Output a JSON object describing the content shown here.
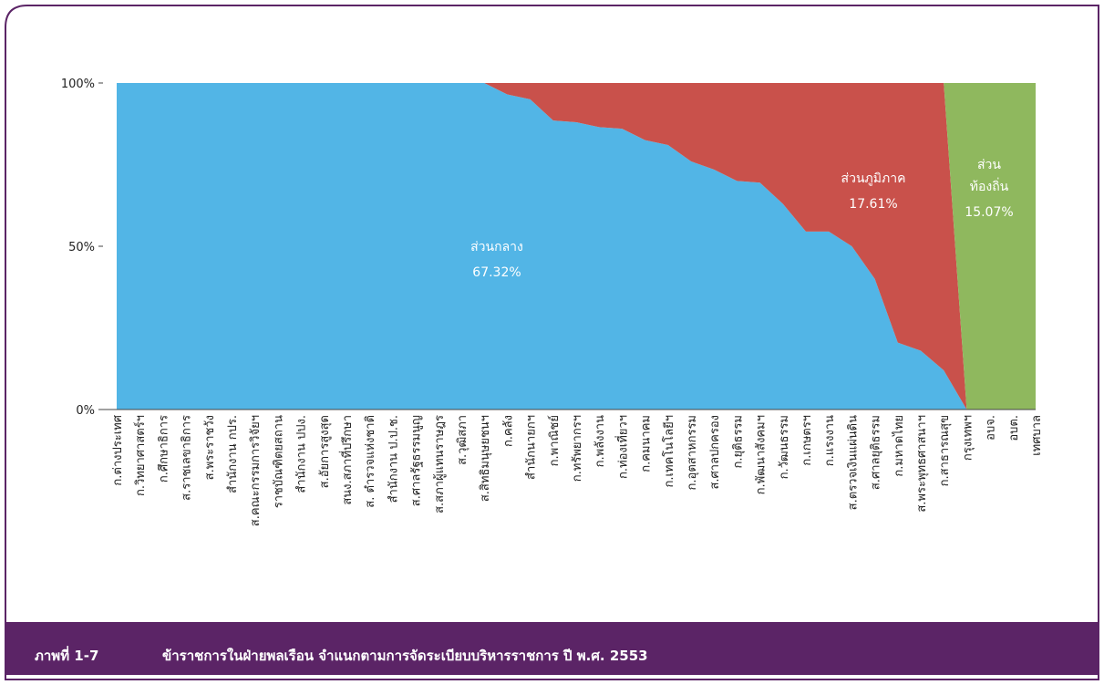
{
  "chart_data": {
    "type": "stacked_area",
    "categories": [
      "ก.ต่างประเทศ",
      "ก.วิทยาศาสตร์ฯ",
      "ก.ศึกษาธิการ",
      "ส.ราชเลขาธิการ",
      "ส.พระราชวัง",
      "สำนักงาน กปร.",
      "ส.คณะกรรมการวิจัยฯ",
      "ราชบัณฑิตยสถาน",
      "สำนักงาน ปปง.",
      "ส.อัยการสูงสุด",
      "สนง.สภาที่ปรึกษา",
      "ส. ตำรวจแห่งชาติ",
      "สำนักงาน ป.ป.ช.",
      "ส.ศาลรัฐธรรมนูญ",
      "ส.สภาผู้แทนราษฎร",
      "ส.วุฒิสภา",
      "ส.สิทธิมนุษยชนฯ",
      "ก.คลัง",
      "สำนักนายกฯ",
      "ก.พาณิชย์",
      "ก.ทรัพยากรฯ",
      "ก.พลังงาน",
      "ก.ท่องเที่ยวฯ",
      "ก.คมนาคม",
      "ก.เทคโนโลยีฯ",
      "ก.อุตสาหกรรม",
      "ส.ศาลปกครอง",
      "ก.ยุติธรรม",
      "ก.พัฒนาสังคมฯ",
      "ก.วัฒนธรรม",
      "ก.เกษตรฯ",
      "ก.แรงงาน",
      "ส.ตรวจเงินแผ่นดิน",
      "ส.ศาลยุติธรรม",
      "ก.มหาดไทย",
      "ส.พระพุทธศาสนาฯ",
      "ก.สาธารณสุข",
      "กรุงเทพฯ",
      "อบจ.",
      "อบต.",
      "เทศบาล"
    ],
    "series": [
      {
        "name_lines": [
          "ส่วนกลาง"
        ],
        "color": "#52b5e6",
        "share": 67.32,
        "share_label": "67.32%",
        "values": [
          100,
          100,
          100,
          100,
          100,
          100,
          100,
          100,
          100,
          100,
          100,
          100,
          100,
          100,
          100,
          100,
          100,
          96.5,
          95,
          88.5,
          88,
          86.5,
          86,
          82.5,
          81,
          76,
          73.5,
          70,
          69.5,
          63,
          54.5,
          54.5,
          50,
          40,
          20.5,
          18,
          12,
          0,
          0,
          0,
          0
        ]
      },
      {
        "name_lines": [
          "ส่วนภูมิภาค"
        ],
        "color": "#c9514b",
        "share": 17.61,
        "share_label": "17.61%",
        "values": [
          0,
          0,
          0,
          0,
          0,
          0,
          0,
          0,
          0,
          0,
          0,
          0,
          0,
          0,
          0,
          0,
          0,
          3.5,
          5,
          11.5,
          12,
          13.5,
          14,
          17.5,
          19,
          24,
          26.5,
          30,
          30.5,
          37,
          45.5,
          45.5,
          50,
          60,
          79.5,
          82,
          88,
          0,
          0,
          0,
          0
        ]
      },
      {
        "name_lines": [
          "ส่วน",
          "ท้องถิ่น"
        ],
        "color": "#8fb85e",
        "share": 15.07,
        "share_label": "15.07%",
        "values": [
          0,
          0,
          0,
          0,
          0,
          0,
          0,
          0,
          0,
          0,
          0,
          0,
          0,
          0,
          0,
          0,
          0,
          0,
          0,
          0,
          0,
          0,
          0,
          0,
          0,
          0,
          0,
          0,
          0,
          0,
          0,
          0,
          0,
          0,
          0,
          0,
          0,
          100,
          100,
          100,
          100
        ]
      }
    ],
    "ylim": [
      0,
      100
    ],
    "yticks": [
      {
        "value": 0,
        "label": "0%"
      },
      {
        "value": 50,
        "label": "50%"
      },
      {
        "value": 100,
        "label": "100%"
      }
    ]
  },
  "caption": {
    "number": "ภาพที่ 1-7",
    "text": "ข้าราชการในฝ่ายพลเรือน จำแนกตามการจัดระเบียบบริหารราชการ ปี พ.ศ. 2553"
  }
}
